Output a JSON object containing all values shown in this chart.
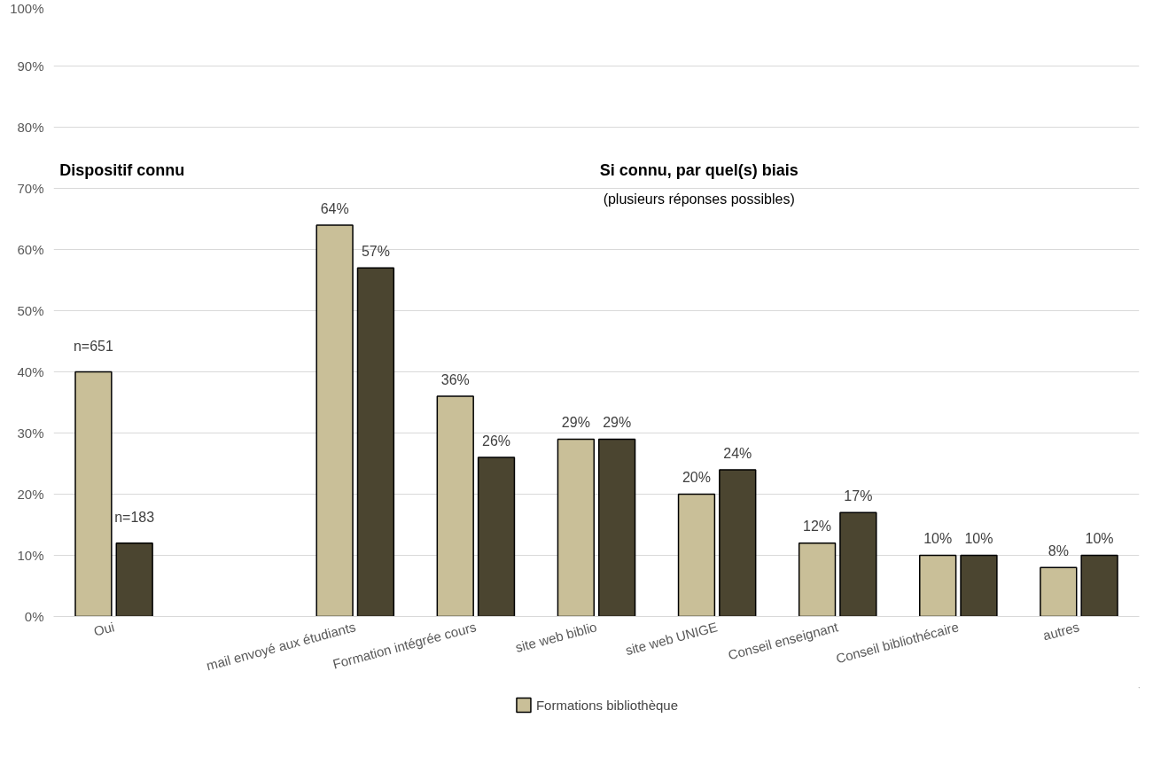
{
  "chart_data": {
    "type": "bar",
    "categories": [
      "Oui",
      null,
      "mail envoyé aux étudiants",
      "Formation intégrée cours",
      "site web biblio",
      "site web UNIGE",
      "Conseil enseignant",
      "Conseil bibliothécaire",
      "autres"
    ],
    "series": [
      {
        "name": "Formations bibliothèque",
        "color": "#c9bf98",
        "values": [
          40,
          null,
          64,
          36,
          29,
          20,
          12,
          10,
          8
        ],
        "value_labels": [
          null,
          null,
          "64%",
          "36%",
          "29%",
          "20%",
          "12%",
          "10%",
          "8%"
        ]
      },
      {
        "color": "#4b4530",
        "values": [
          12,
          null,
          57,
          26,
          29,
          24,
          17,
          10,
          10
        ],
        "value_labels": [
          null,
          null,
          "57%",
          "26%",
          "29%",
          "24%",
          "17%",
          "10%",
          "10%"
        ]
      }
    ],
    "ylim": [
      0,
      100
    ],
    "yticks": [
      {
        "value": 0,
        "label": "0%"
      },
      {
        "value": 10,
        "label": "10%"
      },
      {
        "value": 20,
        "label": "20%"
      },
      {
        "value": 30,
        "label": "30%"
      },
      {
        "value": 40,
        "label": "40%"
      },
      {
        "value": 50,
        "label": "50%"
      },
      {
        "value": 60,
        "label": "60%"
      },
      {
        "value": 70,
        "label": "70%"
      },
      {
        "value": 80,
        "label": "80%"
      },
      {
        "value": 90,
        "label": "90%"
      },
      {
        "value": 100,
        "label": "100%"
      }
    ],
    "grid": "y",
    "legend": "bottom",
    "annotations": [
      "Dispositif connu",
      "Si connu, par quel(s) biais",
      "(plusieurs réponses possibles)",
      {
        "text": "n=651",
        "x": "Oui",
        "y": 40
      },
      {
        "text": "n=183",
        "x": "Oui",
        "y": 12
      }
    ]
  }
}
